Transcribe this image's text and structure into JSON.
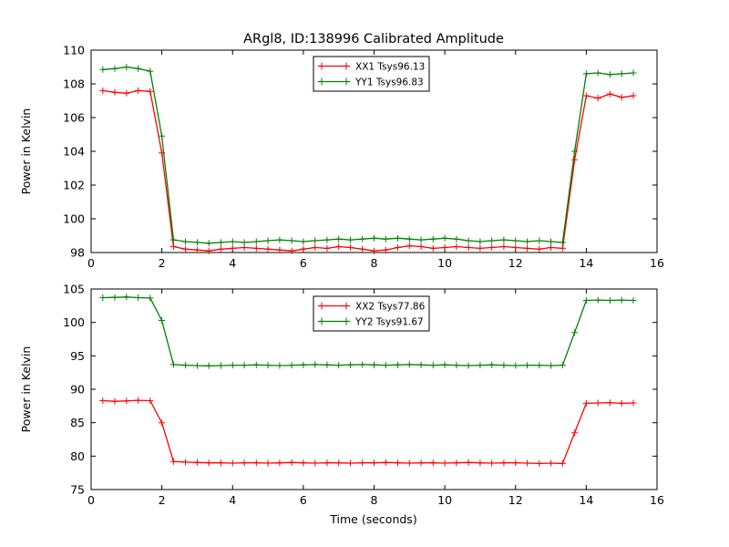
{
  "figure": {
    "background": "#ffffff",
    "frame_color": "#000000"
  },
  "chart_data": [
    {
      "type": "line",
      "title": "ARgl8, ID:138996 Calibrated Amplitude",
      "xlabel": "",
      "ylabel": "Power in Kelvin",
      "xlim": [
        0,
        16
      ],
      "ylim": [
        98,
        110
      ],
      "xticks": [
        0,
        2,
        4,
        6,
        8,
        10,
        12,
        14,
        16
      ],
      "yticks": [
        98,
        100,
        102,
        104,
        106,
        108,
        110
      ],
      "grid": false,
      "legend_position": "upper center",
      "marker": "plus",
      "x": [
        0.33,
        0.67,
        1.0,
        1.33,
        1.67,
        2.0,
        2.33,
        2.67,
        3.0,
        3.33,
        3.67,
        4.0,
        4.33,
        4.67,
        5.0,
        5.33,
        5.67,
        6.0,
        6.33,
        6.67,
        7.0,
        7.33,
        7.67,
        8.0,
        8.33,
        8.67,
        9.0,
        9.33,
        9.67,
        10.0,
        10.33,
        10.67,
        11.0,
        11.33,
        11.67,
        12.0,
        12.33,
        12.67,
        13.0,
        13.33,
        13.67,
        14.0,
        14.33,
        14.67,
        15.0,
        15.33
      ],
      "series": [
        {
          "name": "XX1 Tsys96.13",
          "color": "#ff0000",
          "values": [
            107.6,
            107.5,
            107.45,
            107.6,
            107.55,
            103.9,
            98.35,
            98.2,
            98.15,
            98.1,
            98.2,
            98.25,
            98.3,
            98.25,
            98.2,
            98.15,
            98.1,
            98.2,
            98.3,
            98.25,
            98.35,
            98.3,
            98.2,
            98.1,
            98.15,
            98.3,
            98.4,
            98.35,
            98.25,
            98.3,
            98.35,
            98.3,
            98.25,
            98.3,
            98.35,
            98.3,
            98.25,
            98.2,
            98.3,
            98.25,
            103.5,
            107.3,
            107.15,
            107.4,
            107.2,
            107.3
          ]
        },
        {
          "name": "YY1 Tsys96.83",
          "color": "#008000",
          "values": [
            108.85,
            108.9,
            109.0,
            108.9,
            108.75,
            104.9,
            98.75,
            98.65,
            98.6,
            98.55,
            98.6,
            98.65,
            98.6,
            98.65,
            98.7,
            98.75,
            98.7,
            98.65,
            98.7,
            98.75,
            98.8,
            98.75,
            98.8,
            98.85,
            98.8,
            98.85,
            98.8,
            98.75,
            98.8,
            98.85,
            98.8,
            98.7,
            98.65,
            98.7,
            98.75,
            98.7,
            98.65,
            98.7,
            98.65,
            98.6,
            104.0,
            108.6,
            108.65,
            108.55,
            108.6,
            108.65
          ]
        }
      ]
    },
    {
      "type": "line",
      "title": "",
      "xlabel": "Time (seconds)",
      "ylabel": "Power in Kelvin",
      "xlim": [
        0,
        16
      ],
      "ylim": [
        75,
        105
      ],
      "xticks": [
        0,
        2,
        4,
        6,
        8,
        10,
        12,
        14,
        16
      ],
      "yticks": [
        75,
        80,
        85,
        90,
        95,
        100,
        105
      ],
      "grid": false,
      "legend_position": "upper center",
      "marker": "plus",
      "x": [
        0.33,
        0.67,
        1.0,
        1.33,
        1.67,
        2.0,
        2.33,
        2.67,
        3.0,
        3.33,
        3.67,
        4.0,
        4.33,
        4.67,
        5.0,
        5.33,
        5.67,
        6.0,
        6.33,
        6.67,
        7.0,
        7.33,
        7.67,
        8.0,
        8.33,
        8.67,
        9.0,
        9.33,
        9.67,
        10.0,
        10.33,
        10.67,
        11.0,
        11.33,
        11.67,
        12.0,
        12.33,
        12.67,
        13.0,
        13.33,
        13.67,
        14.0,
        14.33,
        14.67,
        15.0,
        15.33
      ],
      "series": [
        {
          "name": "XX2 Tsys77.86",
          "color": "#ff0000",
          "values": [
            88.3,
            88.2,
            88.25,
            88.35,
            88.3,
            85.0,
            79.2,
            79.1,
            79.05,
            79.0,
            79.0,
            78.95,
            79.0,
            79.0,
            78.95,
            79.0,
            79.05,
            79.0,
            78.95,
            79.0,
            79.0,
            78.95,
            79.0,
            79.0,
            79.05,
            79.0,
            78.95,
            79.0,
            79.0,
            78.95,
            79.0,
            79.05,
            79.0,
            78.95,
            79.0,
            79.0,
            78.95,
            78.9,
            78.95,
            78.9,
            83.5,
            87.9,
            87.95,
            88.0,
            87.9,
            87.95
          ]
        },
        {
          "name": "YY2 Tsys91.67",
          "color": "#008000",
          "values": [
            103.7,
            103.75,
            103.8,
            103.7,
            103.65,
            100.3,
            93.7,
            93.6,
            93.55,
            93.5,
            93.55,
            93.6,
            93.6,
            93.65,
            93.6,
            93.55,
            93.6,
            93.65,
            93.7,
            93.65,
            93.6,
            93.65,
            93.7,
            93.65,
            93.6,
            93.65,
            93.7,
            93.65,
            93.6,
            93.65,
            93.6,
            93.55,
            93.6,
            93.65,
            93.6,
            93.55,
            93.6,
            93.6,
            93.55,
            93.6,
            98.5,
            103.3,
            103.35,
            103.3,
            103.35,
            103.3
          ]
        }
      ]
    }
  ]
}
